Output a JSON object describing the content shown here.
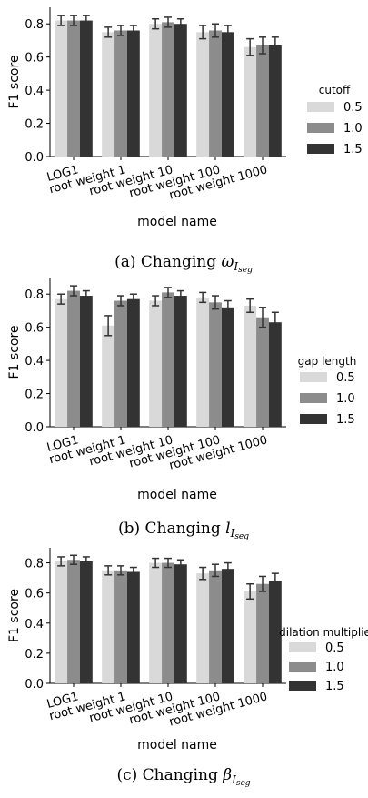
{
  "chart_data": [
    {
      "type": "bar",
      "ylabel": "F1 score",
      "xlabel": "model name",
      "categories": [
        "LOG1",
        "root weight 1",
        "root weight 10",
        "root weight 100",
        "root weight 1000"
      ],
      "yticks": [
        "0.0",
        "0.2",
        "0.4",
        "0.6",
        "0.8"
      ],
      "ylim": [
        0,
        0.9
      ],
      "legend_title": "cutoff",
      "legend_placement": "right",
      "series": [
        {
          "name": "0.5",
          "color": "#d9d9d9",
          "values": [
            0.82,
            0.75,
            0.8,
            0.75,
            0.66
          ],
          "err": [
            0.03,
            0.03,
            0.03,
            0.04,
            0.05
          ]
        },
        {
          "name": "1.0",
          "color": "#8c8c8c",
          "values": [
            0.82,
            0.76,
            0.81,
            0.76,
            0.67
          ],
          "err": [
            0.03,
            0.03,
            0.03,
            0.04,
            0.05
          ]
        },
        {
          "name": "1.5",
          "color": "#333333",
          "values": [
            0.82,
            0.76,
            0.8,
            0.75,
            0.67
          ],
          "err": [
            0.03,
            0.03,
            0.03,
            0.04,
            0.05
          ]
        }
      ],
      "caption": {
        "label": "(a) Changing",
        "symbol": "ω",
        "subscript": "I",
        "subsubscript": "seg"
      }
    },
    {
      "type": "bar",
      "ylabel": "F1 score",
      "xlabel": "model name",
      "categories": [
        "LOG1",
        "root weight 1",
        "root weight 10",
        "root weight 100",
        "root weight 1000"
      ],
      "yticks": [
        "0.0",
        "0.2",
        "0.4",
        "0.6",
        "0.8"
      ],
      "ylim": [
        0,
        0.9
      ],
      "legend_title": "gap length",
      "legend_placement": "right",
      "series": [
        {
          "name": "0.5",
          "color": "#d9d9d9",
          "values": [
            0.77,
            0.61,
            0.76,
            0.78,
            0.73
          ],
          "err": [
            0.03,
            0.06,
            0.03,
            0.03,
            0.04
          ]
        },
        {
          "name": "1.0",
          "color": "#8c8c8c",
          "values": [
            0.82,
            0.76,
            0.81,
            0.75,
            0.66
          ],
          "err": [
            0.03,
            0.03,
            0.03,
            0.04,
            0.06
          ]
        },
        {
          "name": "1.5",
          "color": "#333333",
          "values": [
            0.79,
            0.77,
            0.79,
            0.72,
            0.63
          ],
          "err": [
            0.03,
            0.03,
            0.03,
            0.04,
            0.06
          ]
        }
      ],
      "caption": {
        "label": "(b) Changing",
        "symbol": "l",
        "subscript": "I",
        "subsubscript": "seg"
      }
    },
    {
      "type": "bar",
      "ylabel": "F1 score",
      "xlabel": "model name",
      "categories": [
        "LOG1",
        "root weight 1",
        "root weight 10",
        "root weight 100",
        "root weight 1000"
      ],
      "yticks": [
        "0.0",
        "0.2",
        "0.4",
        "0.6",
        "0.8"
      ],
      "ylim": [
        0,
        0.9
      ],
      "legend_title": "dilation multiplier",
      "legend_placement": "right",
      "series": [
        {
          "name": "0.5",
          "color": "#d9d9d9",
          "values": [
            0.81,
            0.75,
            0.8,
            0.73,
            0.61
          ],
          "err": [
            0.03,
            0.03,
            0.03,
            0.04,
            0.05
          ]
        },
        {
          "name": "1.0",
          "color": "#8c8c8c",
          "values": [
            0.82,
            0.75,
            0.8,
            0.75,
            0.66
          ],
          "err": [
            0.03,
            0.03,
            0.03,
            0.04,
            0.05
          ]
        },
        {
          "name": "1.5",
          "color": "#333333",
          "values": [
            0.81,
            0.74,
            0.79,
            0.76,
            0.68
          ],
          "err": [
            0.03,
            0.03,
            0.03,
            0.04,
            0.05
          ]
        }
      ],
      "caption": {
        "label": "(c) Changing",
        "symbol": "β",
        "subscript": "I",
        "subsubscript": "seg"
      }
    }
  ]
}
